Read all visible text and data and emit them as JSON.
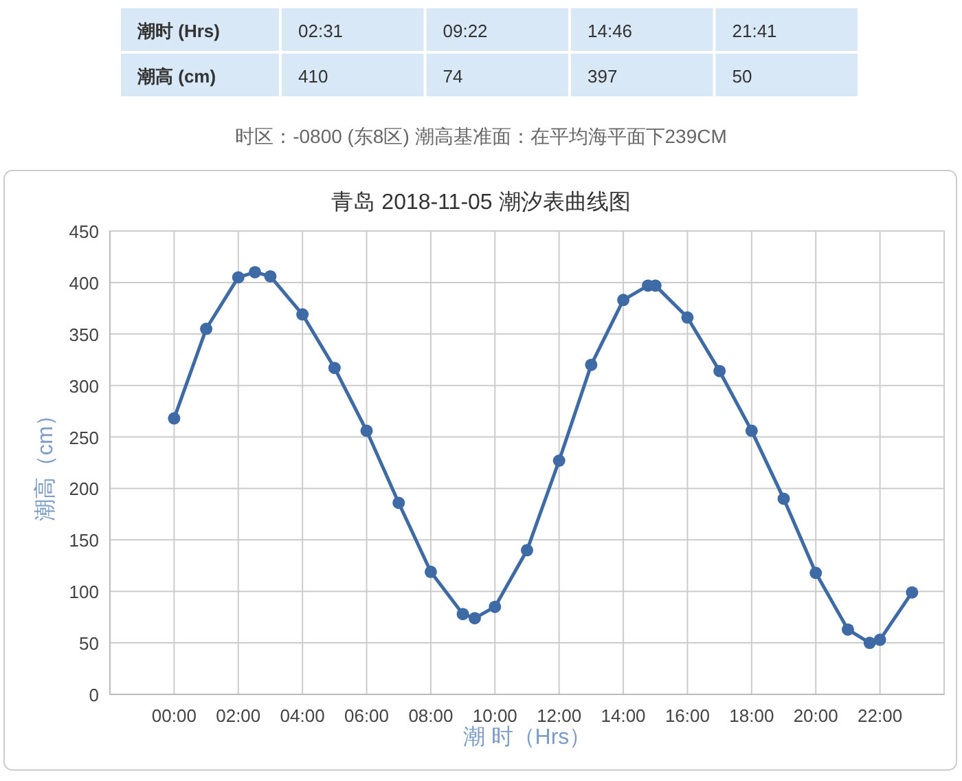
{
  "chart_data": {
    "type": "line",
    "title": "青岛 2018-11-05 潮汐表曲线图",
    "xlabel": "潮 时（Hrs）",
    "ylabel": "潮高（cm）",
    "annotations": [
      "潮时 (Hrs)",
      "02:31",
      "09:22",
      "14:46",
      "21:41",
      "潮高 (cm)",
      "410",
      "74",
      "397",
      "50",
      "时区：-0800 (东8区) 潮高基准面：在平均海平面下239CM"
    ],
    "series": [
      {
        "color": "#3e6aa5",
        "x": [
          0,
          1,
          2,
          2.52,
          3,
          4,
          5,
          6,
          7,
          8,
          9,
          9.37,
          10,
          11,
          12,
          13,
          14,
          14.77,
          15,
          16,
          17,
          18,
          19,
          20,
          21,
          21.68,
          22,
          23
        ],
        "values": [
          268,
          355,
          405,
          410,
          406,
          369,
          317,
          256,
          186,
          119,
          78,
          74,
          85,
          140,
          227,
          320,
          383,
          397,
          397,
          366,
          314,
          256,
          190,
          118,
          63,
          50,
          53,
          99
        ]
      }
    ],
    "xlim": [
      -2,
      24
    ],
    "xticks": [
      {
        "value": 0,
        "label": "00:00"
      },
      {
        "value": 2,
        "label": "02:00"
      },
      {
        "value": 4,
        "label": "04:00"
      },
      {
        "value": 6,
        "label": "06:00"
      },
      {
        "value": 8,
        "label": "08:00"
      },
      {
        "value": 10,
        "label": "10:00"
      },
      {
        "value": 12,
        "label": "12:00"
      },
      {
        "value": 14,
        "label": "14:00"
      },
      {
        "value": 16,
        "label": "16:00"
      },
      {
        "value": 18,
        "label": "18:00"
      },
      {
        "value": 20,
        "label": "20:00"
      },
      {
        "value": 22,
        "label": "22:00"
      }
    ],
    "ylim": [
      0,
      450
    ],
    "yticks": [
      0,
      50,
      100,
      150,
      200,
      250,
      300,
      350,
      400,
      450
    ],
    "grid": true,
    "marker": "circle",
    "line_style": "solid"
  }
}
